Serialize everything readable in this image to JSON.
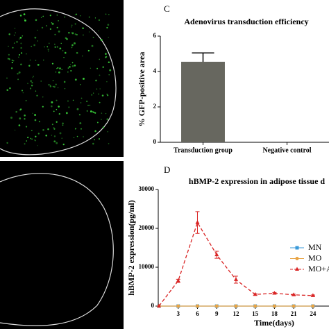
{
  "panel_labels": {
    "c": "C",
    "d": "D"
  },
  "chart_data": [
    {
      "type": "bar",
      "title": "Adenovirus transduction efficiency",
      "ylabel": "% GFP-positive area",
      "categories": [
        "Transduction group",
        "Negative control"
      ],
      "values": [
        4.55,
        0
      ],
      "errors": [
        0.5,
        0
      ],
      "color": "#67675f",
      "ylim": [
        0,
        6
      ],
      "yticks": [
        0,
        2,
        4,
        6
      ]
    },
    {
      "type": "line",
      "title": "hBMP-2 expression in adipose tissue d",
      "xlabel": "Time(days)",
      "ylabel": "hBMP-2 expression(pg/ml)",
      "x": [
        0,
        3,
        6,
        9,
        12,
        15,
        18,
        21,
        24
      ],
      "xlim": [
        0,
        26.5
      ],
      "xticks": [
        3,
        6,
        9,
        12,
        15,
        18,
        21,
        24
      ],
      "ylim": [
        0,
        30000
      ],
      "yticks": [
        0,
        10000,
        20000,
        30000
      ],
      "series": [
        {
          "name": "MN",
          "color": "#3a9ad9",
          "marker": "square",
          "values": [
            0,
            0,
            0,
            0,
            0,
            0,
            0,
            0,
            0
          ]
        },
        {
          "name": "MO",
          "color": "#e8a445",
          "marker": "circle",
          "values": [
            0,
            0,
            0,
            0,
            0,
            0,
            0,
            0,
            0
          ]
        },
        {
          "name": "MO+A",
          "color": "#d92424",
          "marker": "triangle",
          "dashed": true,
          "values": [
            0,
            6500,
            21500,
            13200,
            6800,
            3000,
            3300,
            2900,
            2700
          ],
          "errors": [
            0,
            400,
            2800,
            900,
            900,
            200,
            200,
            150,
            150
          ]
        }
      ]
    }
  ]
}
